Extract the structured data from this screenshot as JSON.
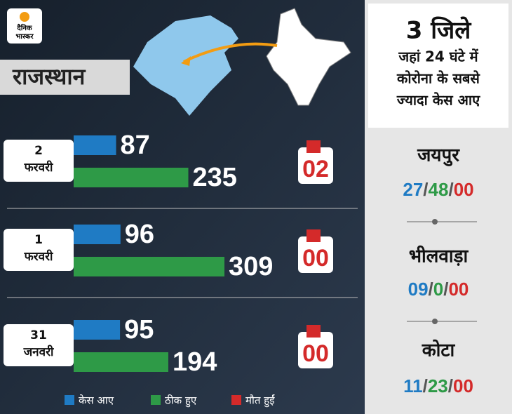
{
  "logo": {
    "line1": "दैनिक",
    "line2": "भास्कर"
  },
  "region": "राजस्थान",
  "chart_data": {
    "type": "bar",
    "categories": [
      "2 फरवरी",
      "1 फरवरी",
      "31 जनवरी"
    ],
    "series": [
      {
        "name": "केस आए",
        "color": "#1f7bc4",
        "values": [
          87,
          96,
          95
        ]
      },
      {
        "name": "ठीक हुए",
        "color": "#2e9a47",
        "values": [
          235,
          309,
          194
        ]
      },
      {
        "name": "मौत हुईं",
        "color": "#d42a2a",
        "values": [
          2,
          0,
          0
        ],
        "value_labels": [
          "02",
          "00",
          "00"
        ]
      }
    ]
  },
  "side_panel": {
    "title": "3 जिले",
    "subtitle_lines": [
      "जहां 24 घंटे में",
      "कोरोना के सबसे",
      "ज्यादा केस आए"
    ],
    "separator": "/",
    "districts": [
      {
        "name": "जयपुर",
        "cases": "27",
        "recovered": "48",
        "deaths": "00"
      },
      {
        "name": "भीलवाड़ा",
        "cases": "09",
        "recovered": "0",
        "deaths": "00"
      },
      {
        "name": "कोटा",
        "cases": "11",
        "recovered": "23",
        "deaths": "00"
      }
    ]
  }
}
